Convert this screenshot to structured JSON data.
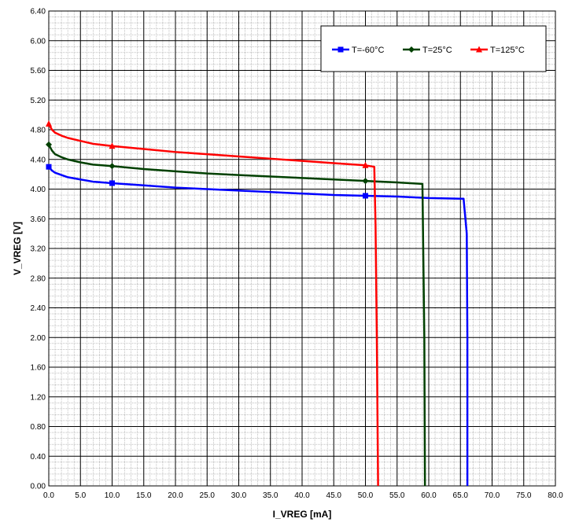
{
  "chart_data": {
    "type": "line",
    "title": "",
    "xlabel": "I_VREG [mA]",
    "ylabel": "V_VREG [V]",
    "xlim": [
      0,
      80
    ],
    "ylim": [
      0,
      6.4
    ],
    "xticks": [
      "0.0",
      "5.0",
      "10.0",
      "15.0",
      "20.0",
      "25.0",
      "30.0",
      "35.0",
      "40.0",
      "45.0",
      "50.0",
      "55.0",
      "60.0",
      "65.0",
      "70.0",
      "75.0",
      "80.0"
    ],
    "yticks": [
      "0.00",
      "0.40",
      "0.80",
      "1.20",
      "1.60",
      "2.00",
      "2.40",
      "2.80",
      "3.20",
      "3.60",
      "4.00",
      "4.40",
      "4.80",
      "5.20",
      "5.60",
      "6.00",
      "6.40"
    ],
    "grid": true,
    "legend_position": "top-right",
    "series": [
      {
        "name": "T=-60°C",
        "color": "#0000ff",
        "marker": "square",
        "points": [
          [
            0,
            4.3
          ],
          [
            0.5,
            4.25
          ],
          [
            1,
            4.22
          ],
          [
            2,
            4.19
          ],
          [
            3,
            4.16
          ],
          [
            5,
            4.13
          ],
          [
            7,
            4.1
          ],
          [
            10,
            4.08
          ],
          [
            15,
            4.05
          ],
          [
            20,
            4.02
          ],
          [
            25,
            4.0
          ],
          [
            30,
            3.98
          ],
          [
            35,
            3.96
          ],
          [
            40,
            3.94
          ],
          [
            45,
            3.92
          ],
          [
            50,
            3.91
          ],
          [
            55,
            3.9
          ],
          [
            60,
            3.88
          ],
          [
            65,
            3.87
          ],
          [
            65.5,
            3.87
          ],
          [
            66,
            3.4
          ],
          [
            66.1,
            2.0
          ],
          [
            66.1,
            0
          ]
        ],
        "marker_points": [
          [
            0,
            4.3
          ],
          [
            10,
            4.08
          ],
          [
            50,
            3.91
          ]
        ]
      },
      {
        "name": "T=25°C",
        "color": "#004000",
        "marker": "diamond",
        "points": [
          [
            0,
            4.6
          ],
          [
            0.5,
            4.52
          ],
          [
            1,
            4.47
          ],
          [
            2,
            4.43
          ],
          [
            3,
            4.4
          ],
          [
            5,
            4.36
          ],
          [
            7,
            4.33
          ],
          [
            10,
            4.31
          ],
          [
            15,
            4.27
          ],
          [
            20,
            4.24
          ],
          [
            25,
            4.21
          ],
          [
            30,
            4.19
          ],
          [
            35,
            4.17
          ],
          [
            40,
            4.15
          ],
          [
            45,
            4.13
          ],
          [
            50,
            4.11
          ],
          [
            55,
            4.09
          ],
          [
            59,
            4.07
          ],
          [
            59.3,
            2.0
          ],
          [
            59.4,
            0
          ]
        ],
        "marker_points": [
          [
            0,
            4.6
          ],
          [
            10,
            4.31
          ],
          [
            50,
            4.11
          ]
        ]
      },
      {
        "name": "T=125°C",
        "color": "#ff0000",
        "marker": "triangle",
        "points": [
          [
            0,
            4.88
          ],
          [
            0.5,
            4.8
          ],
          [
            1,
            4.76
          ],
          [
            2,
            4.72
          ],
          [
            3,
            4.69
          ],
          [
            5,
            4.65
          ],
          [
            7,
            4.61
          ],
          [
            10,
            4.58
          ],
          [
            15,
            4.54
          ],
          [
            20,
            4.5
          ],
          [
            25,
            4.47
          ],
          [
            30,
            4.44
          ],
          [
            35,
            4.41
          ],
          [
            40,
            4.38
          ],
          [
            45,
            4.35
          ],
          [
            50,
            4.32
          ],
          [
            51.4,
            4.3
          ],
          [
            51.6,
            3.5
          ],
          [
            51.8,
            2.0
          ],
          [
            52.0,
            0
          ]
        ],
        "marker_points": [
          [
            0,
            4.88
          ],
          [
            10,
            4.58
          ],
          [
            50,
            4.32
          ]
        ]
      }
    ]
  }
}
